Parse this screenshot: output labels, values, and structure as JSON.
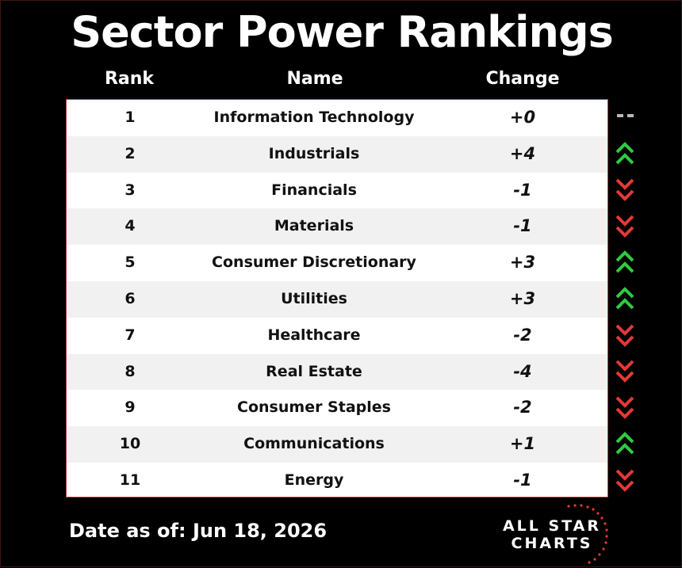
{
  "title": "Sector Power Rankings",
  "headers": {
    "rank": "Rank",
    "name": "Name",
    "change": "Change"
  },
  "rows": [
    {
      "rank": "1",
      "name": "Information Technology",
      "change": "+0",
      "trend": "flat"
    },
    {
      "rank": "2",
      "name": "Industrials",
      "change": "+4",
      "trend": "up"
    },
    {
      "rank": "3",
      "name": "Financials",
      "change": "-1",
      "trend": "down"
    },
    {
      "rank": "4",
      "name": "Materials",
      "change": "-1",
      "trend": "down"
    },
    {
      "rank": "5",
      "name": "Consumer Discretionary",
      "change": "+3",
      "trend": "up"
    },
    {
      "rank": "6",
      "name": "Utilities",
      "change": "+3",
      "trend": "up"
    },
    {
      "rank": "7",
      "name": "Healthcare",
      "change": "-2",
      "trend": "down"
    },
    {
      "rank": "8",
      "name": "Real Estate",
      "change": "-4",
      "trend": "down"
    },
    {
      "rank": "9",
      "name": "Consumer Staples",
      "change": "-2",
      "trend": "down"
    },
    {
      "rank": "10",
      "name": "Communications",
      "change": "+1",
      "trend": "up"
    },
    {
      "rank": "11",
      "name": "Energy",
      "change": "-1",
      "trend": "down"
    }
  ],
  "footer": {
    "date": "Date as of: Jun 18, 2026"
  },
  "logo": {
    "line1": "ALL STAR",
    "line2": "CHARTS"
  },
  "colors": {
    "background": "#000000",
    "up": "#2ecc40",
    "down": "#e53935",
    "flat": "#b8b8b8",
    "border": "#c43c3c"
  },
  "icons": {
    "up": "double-chevron-up-icon",
    "down": "double-chevron-down-icon",
    "flat": "dash-icon"
  }
}
